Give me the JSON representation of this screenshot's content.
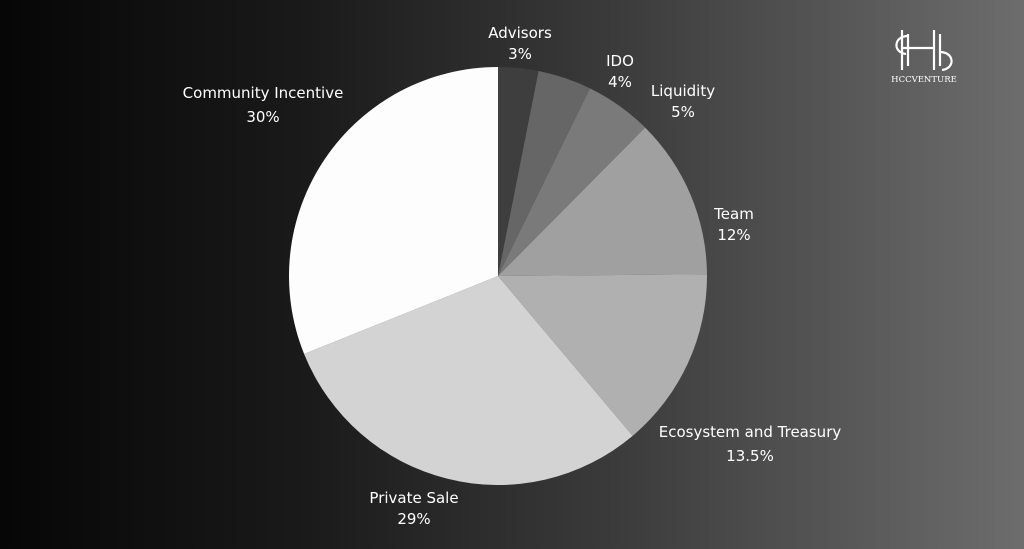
{
  "chart_data": {
    "type": "pie",
    "slices": [
      {
        "label": "Advisors",
        "value": 3,
        "value_label": "3%",
        "color": "#3e3e3e"
      },
      {
        "label": "IDO",
        "value": 4,
        "value_label": "4%",
        "color": "#666666"
      },
      {
        "label": "Liquidity",
        "value": 5,
        "value_label": "5%",
        "color": "#7a7a7a"
      },
      {
        "label": "Team",
        "value": 12,
        "value_label": "12%",
        "color": "#a0a0a0"
      },
      {
        "label": "Ecosystem and Treasury",
        "value": 13.5,
        "value_label": "13.5%",
        "color": "#b0b0b0"
      },
      {
        "label": "Private Sale",
        "value": 29,
        "value_label": "29%",
        "color": "#d3d3d3"
      },
      {
        "label": "Community Incentive",
        "value": 30,
        "value_label": "30%",
        "color": "#fdfdfd"
      }
    ],
    "start_angle": "12 o'clock",
    "direction": "clockwise",
    "legend": "none",
    "labels": "outside slices"
  },
  "logo": {
    "text": "HCCVENTURE"
  }
}
